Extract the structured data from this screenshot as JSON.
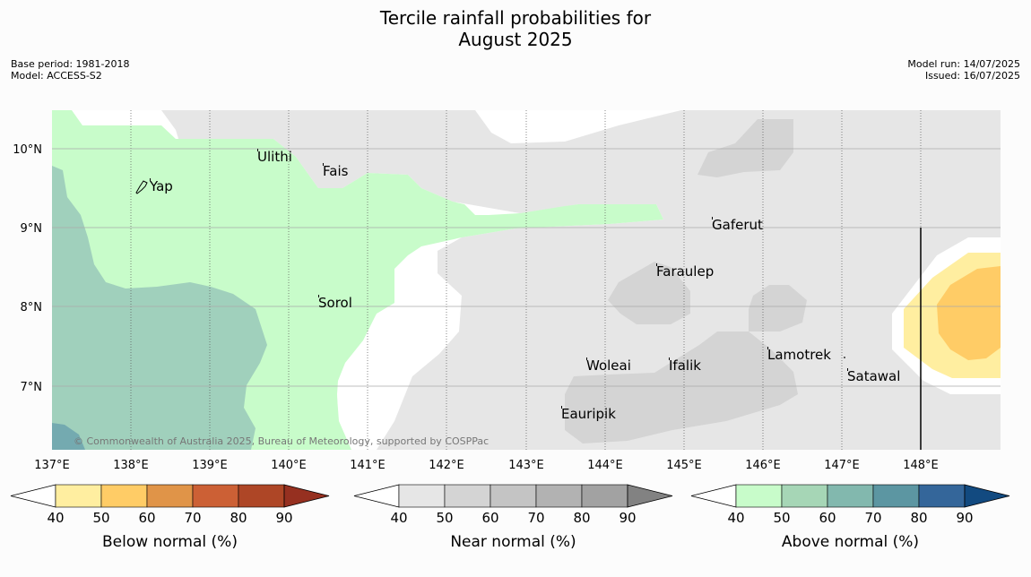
{
  "header": {
    "title_line1": "Tercile rainfall probabilities for",
    "title_line2": "August 2025",
    "base_period": "Base period: 1981-2018",
    "model": "Model: ACCESS-S2",
    "model_run": "Model run: 14/07/2025",
    "issued": "Issued: 16/07/2025"
  },
  "map": {
    "lon_ticks": [
      "137°E",
      "138°E",
      "139°E",
      "140°E",
      "141°E",
      "142°E",
      "143°E",
      "144°E",
      "145°E",
      "146°E",
      "147°E",
      "148°E"
    ],
    "lat_ticks": [
      "10°N",
      "9°N",
      "8°N",
      "7°N"
    ],
    "places": [
      {
        "name": "Ulithi"
      },
      {
        "name": "Fais"
      },
      {
        "name": "Yap"
      },
      {
        "name": "Gaferut"
      },
      {
        "name": "Faraulep"
      },
      {
        "name": "Sorol"
      },
      {
        "name": "Lamotrek"
      },
      {
        "name": "Woleai"
      },
      {
        "name": "Ifalik"
      },
      {
        "name": "Satawal"
      },
      {
        "name": "Eauripik"
      }
    ],
    "copyright": "© Commonwealth of Australia 2025, Bureau of Meteorology, supported by COSPPac"
  },
  "colorbars": [
    {
      "label": "Below normal (%)",
      "ticks": [
        "40",
        "50",
        "60",
        "70",
        "80",
        "90"
      ],
      "colors": [
        "#ffeea0",
        "#ffcc66",
        "#e09448",
        "#cc6035",
        "#ae4626",
        "#963020"
      ]
    },
    {
      "label": "Near normal (%)",
      "ticks": [
        "40",
        "50",
        "60",
        "70",
        "80",
        "90"
      ],
      "colors": [
        "#e6e6e6",
        "#d4d4d4",
        "#c4c4c4",
        "#b2b2b2",
        "#a2a2a2",
        "#828282"
      ]
    },
    {
      "label": "Above normal (%)",
      "ticks": [
        "40",
        "50",
        "60",
        "70",
        "80",
        "90"
      ],
      "colors": [
        "#c8fcca",
        "#a6d6b6",
        "#82b8ae",
        "#5c96a2",
        "#34669a",
        "#124a80"
      ]
    }
  ]
}
